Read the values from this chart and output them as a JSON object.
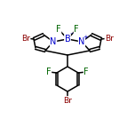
{
  "bg_color": "#ffffff",
  "bond_color": "#000000",
  "atom_colors": {
    "Br": "#8B0000",
    "N": "#0000CC",
    "B": "#0000CC",
    "F": "#006400",
    "C": "#000000"
  },
  "line_width": 1.1,
  "font_size": 7.0,
  "fig_size": [
    1.52,
    1.52
  ],
  "dpi": 100
}
